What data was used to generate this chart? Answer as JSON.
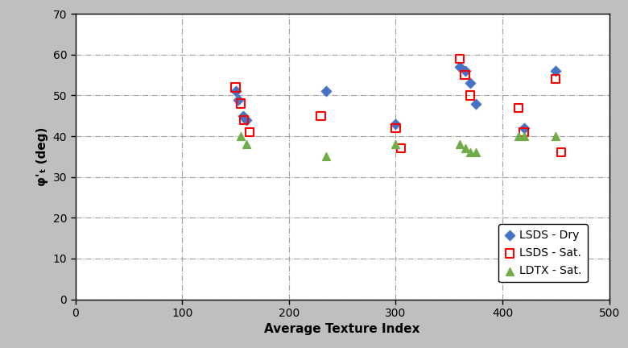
{
  "lsds_dry_x": [
    150,
    153,
    157,
    160,
    235,
    300,
    360,
    365,
    370,
    375,
    420,
    450
  ],
  "lsds_dry_y": [
    51,
    49,
    45,
    44,
    51,
    43,
    57,
    56,
    53,
    48,
    42,
    56
  ],
  "lsds_sat_x": [
    150,
    155,
    158,
    163,
    230,
    300,
    305,
    360,
    365,
    370,
    415,
    420,
    450,
    455
  ],
  "lsds_sat_y": [
    52,
    48,
    44,
    41,
    45,
    42,
    37,
    59,
    55,
    50,
    47,
    41,
    54,
    36
  ],
  "ldtx_sat_x": [
    155,
    160,
    235,
    300,
    360,
    365,
    370,
    375,
    415,
    420,
    450
  ],
  "ldtx_sat_y": [
    40,
    38,
    35,
    38,
    38,
    37,
    36,
    36,
    40,
    40,
    40
  ],
  "xlabel": "Average Texture Index",
  "ylabel": "φ'$_t$ (deg)",
  "xlim": [
    0,
    500
  ],
  "ylim": [
    0,
    70
  ],
  "xticks": [
    0,
    100,
    200,
    300,
    400,
    500
  ],
  "yticks": [
    0,
    10,
    20,
    30,
    40,
    50,
    60,
    70
  ],
  "lsds_dry_color": "#4472C4",
  "lsds_sat_color": "#FF0000",
  "ldtx_sat_color": "#70AD47",
  "plot_bg_color": "#FFFFFF",
  "fig_bg_color": "#BFBFBF",
  "legend_labels": [
    "LSDS - Dry",
    "LSDS - Sat.",
    "LDTX - Sat."
  ],
  "grid_color": "#A0A0A0",
  "grid_style": "-."
}
